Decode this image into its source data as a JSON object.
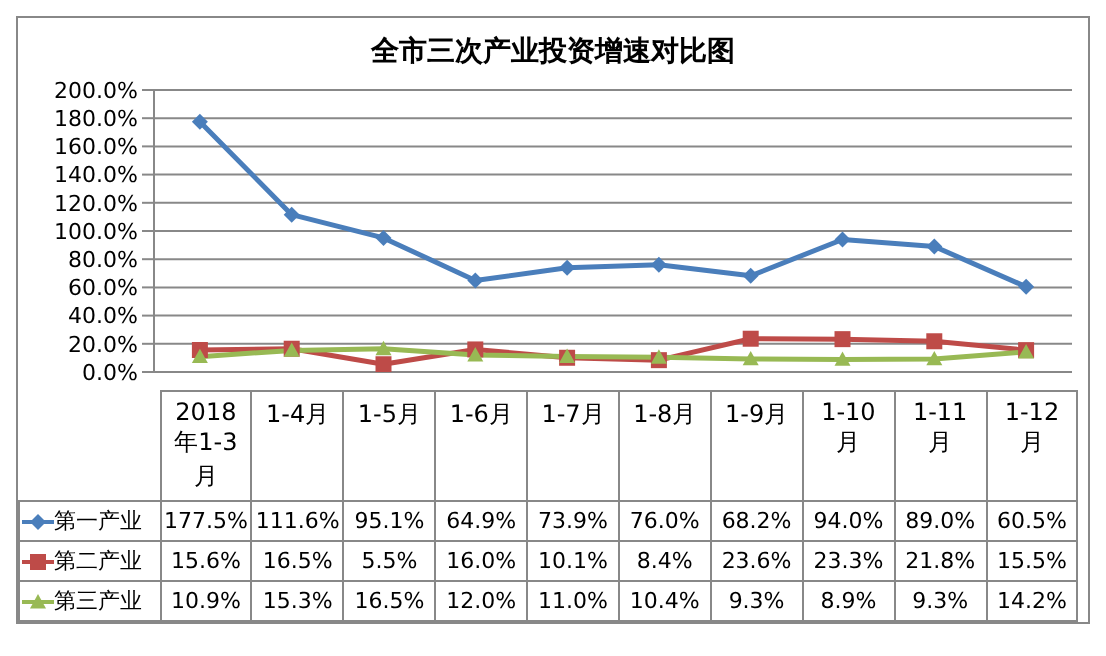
{
  "chart_data": {
    "type": "line",
    "title": "全市三次产业投资增速对比图",
    "categories": [
      "2018年1-3月",
      "1-4月",
      "1-5月",
      "1-6月",
      "1-7月",
      "1-8月",
      "1-9月",
      "1-10月",
      "1-11月",
      "1-12月"
    ],
    "series": [
      {
        "name": "第一产业",
        "color": "#4a7ebb",
        "marker": "diamond",
        "values": [
          177.5,
          111.6,
          95.1,
          64.9,
          73.9,
          76.0,
          68.2,
          94.0,
          89.0,
          60.5
        ],
        "value_labels": [
          "177.5%",
          "111.6%",
          "95.1%",
          "64.9%",
          "73.9%",
          "76.0%",
          "68.2%",
          "94.0%",
          "89.0%",
          "60.5%"
        ]
      },
      {
        "name": "第二产业",
        "color": "#be4b48",
        "marker": "square",
        "values": [
          15.6,
          16.5,
          5.5,
          16.0,
          10.1,
          8.4,
          23.6,
          23.3,
          21.8,
          15.5
        ],
        "value_labels": [
          "15.6%",
          "16.5%",
          "5.5%",
          "16.0%",
          "10.1%",
          "8.4%",
          "23.6%",
          "23.3%",
          "21.8%",
          "15.5%"
        ]
      },
      {
        "name": "第三产业",
        "color": "#98b954",
        "marker": "triangle",
        "values": [
          10.9,
          15.3,
          16.5,
          12.0,
          11.0,
          10.4,
          9.3,
          8.9,
          9.3,
          14.2
        ],
        "value_labels": [
          "10.9%",
          "15.3%",
          "16.5%",
          "12.0%",
          "11.0%",
          "10.4%",
          "9.3%",
          "8.9%",
          "9.3%",
          "14.2%"
        ]
      }
    ],
    "ylim": [
      0,
      200
    ],
    "yticks": [
      {
        "value": 0,
        "label": "0.0%"
      },
      {
        "value": 20,
        "label": "20.0%"
      },
      {
        "value": 40,
        "label": "40.0%"
      },
      {
        "value": 60,
        "label": "60.0%"
      },
      {
        "value": 80,
        "label": "80.0%"
      },
      {
        "value": 100,
        "label": "100.0%"
      },
      {
        "value": 120,
        "label": "120.0%"
      },
      {
        "value": 140,
        "label": "140.0%"
      },
      {
        "value": 160,
        "label": "160.0%"
      },
      {
        "value": 180,
        "label": "180.0%"
      },
      {
        "value": 200,
        "label": "200.0%"
      }
    ],
    "grid": "y",
    "legend": "bottom left",
    "line_style": "solid"
  }
}
